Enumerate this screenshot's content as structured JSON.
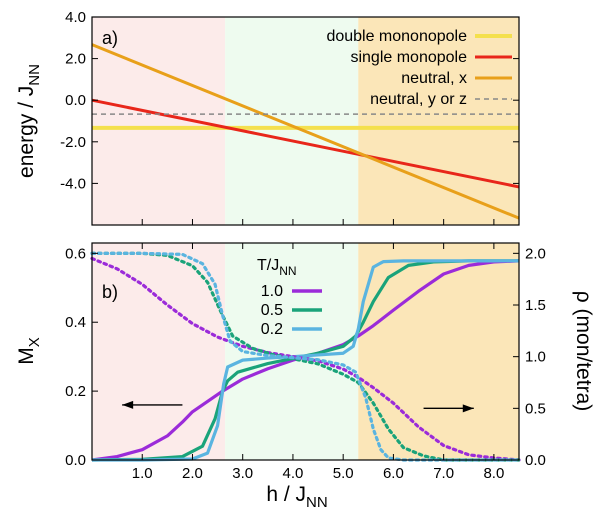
{
  "chart_data": [
    {
      "type": "line",
      "panel_label": "a)",
      "ylabel_main": "energy / J",
      "ylabel_sub": "NN",
      "xlim": [
        0,
        8.5
      ],
      "ylim": [
        -6,
        4
      ],
      "yticks": [
        4,
        2,
        0,
        -2,
        -4
      ],
      "ytick_labels": [
        "4.0",
        "2.0",
        "0.0",
        "-2.0",
        "-4.0"
      ],
      "regions": [
        {
          "from": 0,
          "to": 2.65,
          "color": "#fcebea"
        },
        {
          "from": 2.65,
          "to": 5.3,
          "color": "#eefbef"
        },
        {
          "from": 5.3,
          "to": 8.5,
          "color": "#fbe6b8"
        }
      ],
      "series": [
        {
          "name": "double mononopole",
          "color": "#f4e04d",
          "style": "solid",
          "width": 4,
          "x": [
            0,
            8.5
          ],
          "y": [
            -1.33,
            -1.33
          ]
        },
        {
          "name": "single monopole",
          "color": "#e8261a",
          "style": "solid",
          "width": 3,
          "x": [
            0,
            8.5
          ],
          "y": [
            0.0,
            -4.17
          ]
        },
        {
          "name": "neutral, x",
          "color": "#e8a01a",
          "style": "solid",
          "width": 3,
          "x": [
            0,
            8.5
          ],
          "y": [
            2.67,
            -5.67
          ]
        },
        {
          "name": "neutral, y or z",
          "color": "#888888",
          "style": "dashed",
          "width": 1.5,
          "x": [
            0,
            8.5
          ],
          "y": [
            -0.67,
            -0.67
          ]
        }
      ]
    },
    {
      "type": "line",
      "panel_label": "b)",
      "ylabel_left_main": "M",
      "ylabel_left_sub": "X",
      "ylabel_right": "ρ (mon/tetra)",
      "xlabel_main": "h / J",
      "xlabel_sub": "NN",
      "xlim": [
        0,
        8.5
      ],
      "ylim_left": [
        0,
        0.63
      ],
      "ylim_right": [
        0,
        2.1
      ],
      "xticks": [
        1,
        2,
        3,
        4,
        5,
        6,
        7,
        8
      ],
      "xtick_labels": [
        "1.0",
        "2.0",
        "3.0",
        "4.0",
        "5.0",
        "6.0",
        "7.0",
        "8.0"
      ],
      "yticks_left": [
        0,
        0.2,
        0.4,
        0.6
      ],
      "ytick_labels_left": [
        "0.0",
        "0.2",
        "0.4",
        "0.6"
      ],
      "yticks_right": [
        0,
        0.5,
        1,
        1.5,
        2
      ],
      "ytick_labels_right": [
        "0.0",
        "0.5",
        "1.0",
        "1.5",
        "2.0"
      ],
      "legend_title_main": "T/J",
      "legend_title_sub": "NN",
      "legend_placement": "top-center",
      "series": [
        {
          "name": "1.0",
          "color": "#9b2bd9",
          "axis": "left",
          "style": "solid",
          "x": [
            0,
            0.5,
            1.0,
            1.5,
            1.8,
            2.0,
            2.3,
            2.6,
            3.0,
            3.5,
            4.0,
            4.5,
            5.0,
            5.3,
            5.6,
            6.0,
            6.5,
            7.0,
            7.5,
            8.0,
            8.5
          ],
          "y": [
            0,
            0.01,
            0.03,
            0.07,
            0.11,
            0.14,
            0.17,
            0.2,
            0.235,
            0.265,
            0.29,
            0.31,
            0.335,
            0.36,
            0.39,
            0.435,
            0.49,
            0.54,
            0.565,
            0.575,
            0.578
          ]
        },
        {
          "name": "0.5",
          "color": "#1aa37a",
          "axis": "left",
          "style": "solid",
          "x": [
            0,
            1.0,
            1.8,
            2.2,
            2.45,
            2.6,
            2.7,
            2.9,
            3.5,
            4.0,
            4.5,
            5.0,
            5.25,
            5.4,
            5.6,
            5.9,
            6.3,
            6.8,
            7.5,
            8.5
          ],
          "y": [
            0,
            0.002,
            0.01,
            0.04,
            0.12,
            0.2,
            0.23,
            0.255,
            0.28,
            0.295,
            0.31,
            0.33,
            0.36,
            0.4,
            0.46,
            0.53,
            0.565,
            0.575,
            0.578,
            0.578
          ]
        },
        {
          "name": "0.2",
          "color": "#5ab4e0",
          "axis": "left",
          "style": "solid",
          "x": [
            0,
            1.0,
            2.0,
            2.3,
            2.5,
            2.62,
            2.7,
            3.0,
            3.5,
            4.0,
            4.5,
            5.0,
            5.2,
            5.3,
            5.4,
            5.6,
            5.8,
            6.2,
            7.0,
            8.5
          ],
          "y": [
            0,
            0,
            0.003,
            0.02,
            0.1,
            0.22,
            0.27,
            0.29,
            0.296,
            0.3,
            0.305,
            0.31,
            0.33,
            0.38,
            0.46,
            0.56,
            0.576,
            0.578,
            0.578,
            0.578
          ]
        },
        {
          "name": "1.0",
          "color": "#9b2bd9",
          "axis": "right",
          "style": "dotted",
          "x": [
            0,
            0.5,
            1.0,
            1.5,
            2.0,
            2.5,
            3.0,
            3.5,
            4.0,
            4.5,
            5.0,
            5.3,
            5.6,
            6.0,
            6.5,
            7.0,
            7.5,
            8.0,
            8.5
          ],
          "y": [
            1.95,
            1.85,
            1.7,
            1.5,
            1.32,
            1.19,
            1.1,
            1.04,
            1.0,
            0.96,
            0.88,
            0.8,
            0.7,
            0.55,
            0.32,
            0.14,
            0.05,
            0.02,
            0.0
          ]
        },
        {
          "name": "0.5",
          "color": "#1aa37a",
          "axis": "right",
          "style": "dotted",
          "x": [
            0,
            1.0,
            1.5,
            2.0,
            2.3,
            2.55,
            2.8,
            3.2,
            3.6,
            4.0,
            4.5,
            5.0,
            5.3,
            5.6,
            5.9,
            6.2,
            6.6,
            7.0,
            8.5
          ],
          "y": [
            2.0,
            2.0,
            1.98,
            1.88,
            1.72,
            1.45,
            1.2,
            1.08,
            1.02,
            0.98,
            0.93,
            0.83,
            0.75,
            0.55,
            0.3,
            0.12,
            0.04,
            0.0,
            0.0
          ]
        },
        {
          "name": "0.2",
          "color": "#5ab4e0",
          "axis": "right",
          "style": "dotted",
          "x": [
            0,
            1.0,
            1.8,
            2.2,
            2.45,
            2.6,
            2.75,
            3.0,
            3.5,
            4.0,
            4.5,
            5.0,
            5.25,
            5.45,
            5.6,
            5.75,
            5.9,
            6.2,
            8.5
          ],
          "y": [
            2.0,
            2.0,
            1.99,
            1.9,
            1.7,
            1.4,
            1.15,
            1.05,
            1.01,
            0.99,
            0.97,
            0.92,
            0.85,
            0.6,
            0.3,
            0.1,
            0.02,
            0.0,
            0.0
          ]
        }
      ],
      "arrows": [
        {
          "x_from": 1.8,
          "x_to": 0.6,
          "y": 0.16,
          "axis": "left"
        },
        {
          "x_from": 6.6,
          "x_to": 7.6,
          "y": 0.5,
          "axis": "right"
        }
      ]
    }
  ]
}
